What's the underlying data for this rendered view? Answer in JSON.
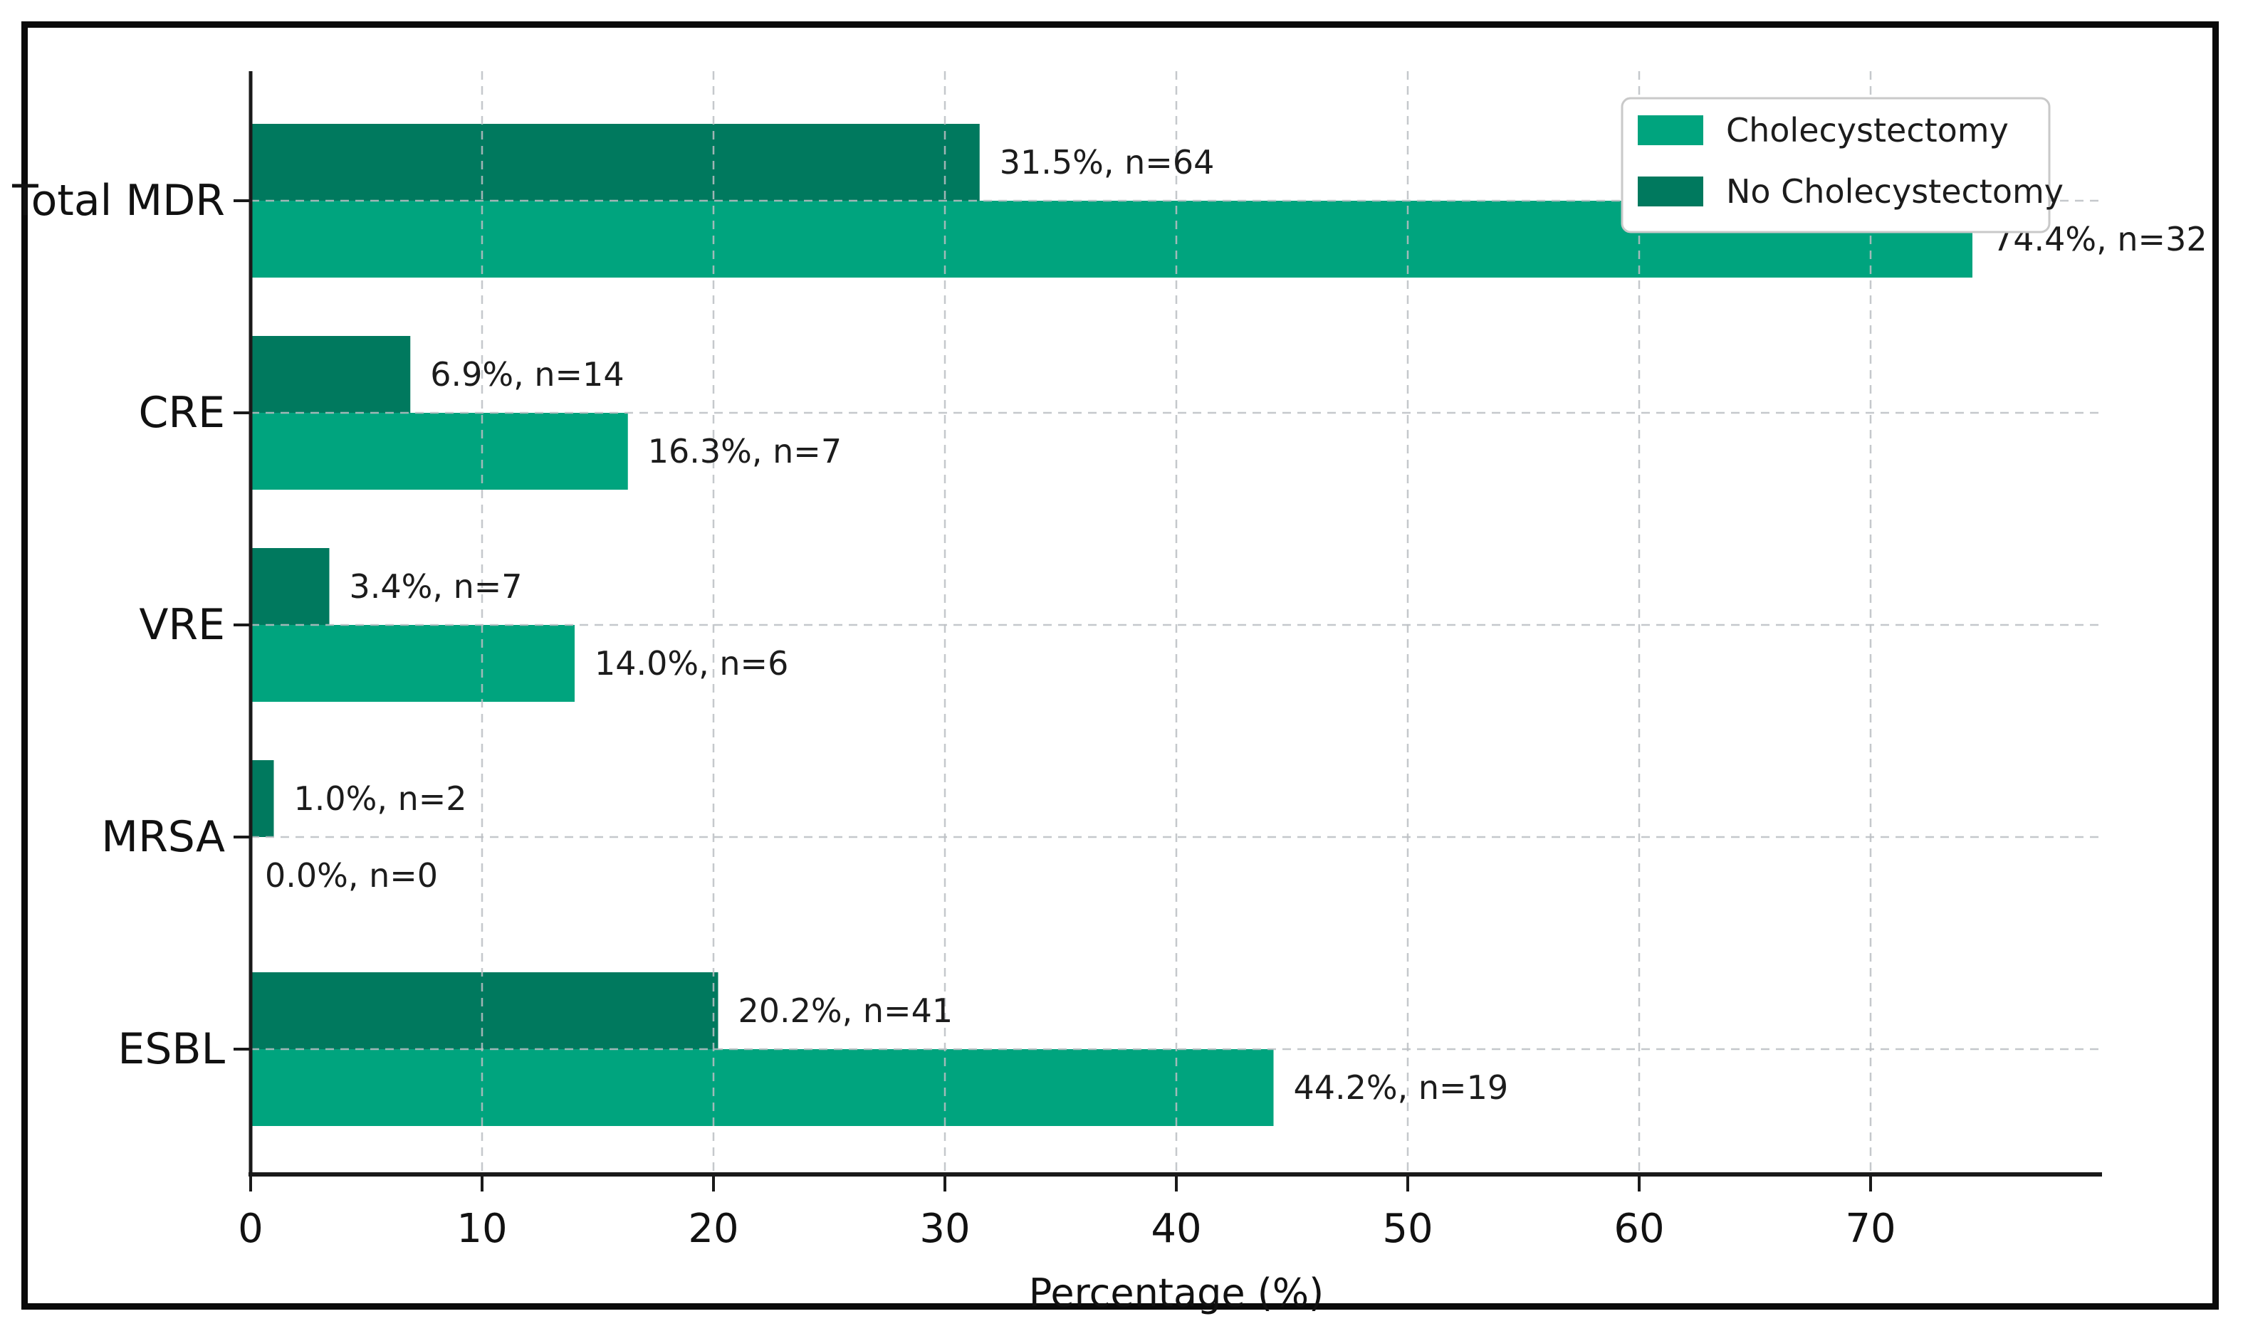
{
  "figure": {
    "background_color": "#ffffff",
    "border_color": "#0a0a0a"
  },
  "chart_data": {
    "type": "bar",
    "orientation": "horizontal",
    "title": "",
    "xlabel": "Percentage (%)",
    "ylabel": "",
    "categories": [
      "Total MDR",
      "CRE",
      "VRE",
      "MRSA",
      "ESBL"
    ],
    "series": [
      {
        "name": "Cholecystectomy",
        "color": "#00A47E",
        "values": [
          74.4,
          16.3,
          14.0,
          0.0,
          44.2
        ],
        "counts": [
          32,
          7,
          6,
          0,
          19
        ],
        "labels": [
          "74.4%, n=32",
          "16.3%, n=7",
          "14.0%, n=6",
          "0.0%, n=0",
          "44.2%, n=19"
        ]
      },
      {
        "name": "No Cholecystectomy",
        "color": "#00795E",
        "values": [
          31.5,
          6.9,
          3.4,
          1.0,
          20.2
        ],
        "counts": [
          64,
          14,
          7,
          2,
          41
        ],
        "labels": [
          "31.5%, n=64",
          "6.9%, n=14",
          "3.4%, n=7",
          "1.0%, n=2",
          "20.2%, n=41"
        ]
      }
    ],
    "group_order_note": "No Cholecystectomy bar drawn above Cholecystectomy bar in each category group",
    "x_ticks": [
      0,
      10,
      20,
      30,
      40,
      50,
      60,
      70
    ],
    "xlim": [
      0,
      80
    ],
    "grid": true,
    "grid_style": "dashed",
    "grid_color": "#bcbfc4",
    "legend_position": "upper right",
    "legend_border_color": "#c9c9c9",
    "text_color": "#1c1c1c",
    "axis_color": "#1a1a1a"
  }
}
